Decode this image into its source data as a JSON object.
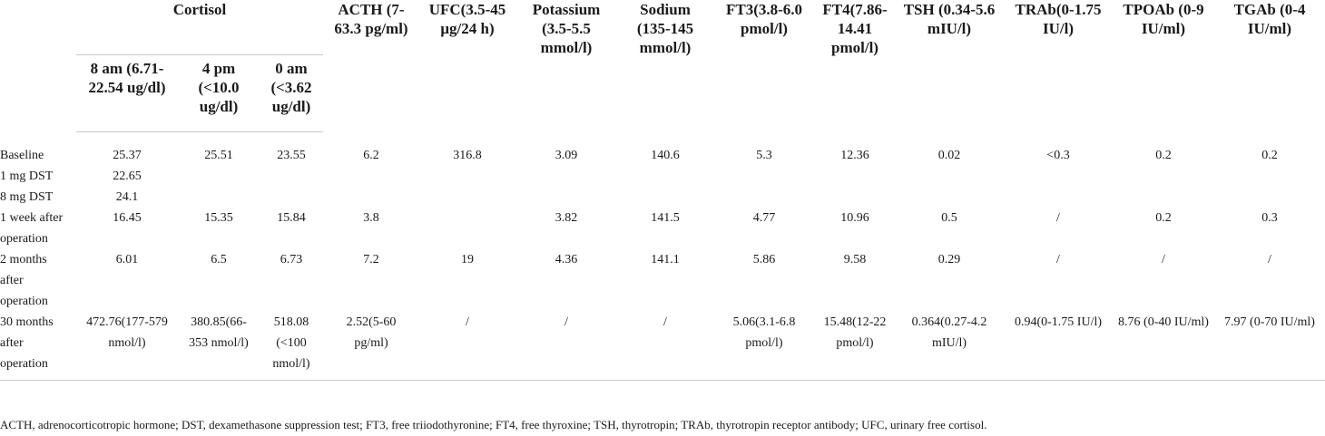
{
  "header": {
    "cortisol": "Cortisol",
    "cortisol_sub": [
      "8 am (6.71-22.54 ug/dl)",
      "4 pm (<10.0 ug/dl)",
      "0 am (<3.62 ug/dl)"
    ],
    "cols": [
      "ACTH (7-63.3 pg/ml)",
      "UFC(3.5-45 μg/24 h)",
      "Potassium (3.5-5.5 mmol/l)",
      "Sodium (135-145 mmol/l)",
      "FT3(3.8-6.0 pmol/l)",
      "FT4(7.86-14.41 pmol/l)",
      "TSH (0.34-5.6 mIU/l)",
      "TRAb(0-1.75 IU/l)",
      "TPOAb (0-9 IU/ml)",
      "TGAb (0-4 IU/ml)"
    ]
  },
  "rows": [
    {
      "label": "Baseline",
      "cells": [
        "25.37",
        "25.51",
        "23.55",
        "6.2",
        "316.8",
        "3.09",
        "140.6",
        "5.3",
        "12.36",
        "0.02",
        "<0.3",
        "0.2",
        "0.2"
      ]
    },
    {
      "label": "1 mg DST",
      "cells": [
        "22.65",
        "",
        "",
        "",
        "",
        "",
        "",
        "",
        "",
        "",
        "",
        "",
        ""
      ]
    },
    {
      "label": "8 mg DST",
      "cells": [
        "24.1",
        "",
        "",
        "",
        "",
        "",
        "",
        "",
        "",
        "",
        "",
        "",
        ""
      ]
    },
    {
      "label": "1 week after operation",
      "cells": [
        "16.45",
        "15.35",
        "15.84",
        "3.8",
        "",
        "3.82",
        "141.5",
        "4.77",
        "10.96",
        "0.5",
        "/",
        "0.2",
        "0.3"
      ]
    },
    {
      "label": "2 months after operation",
      "cells": [
        "6.01",
        "6.5",
        "6.73",
        "7.2",
        "19",
        "4.36",
        "141.1",
        "5.86",
        "9.58",
        "0.29",
        "/",
        "/",
        "/"
      ]
    },
    {
      "label": "30 months after operation",
      "cells": [
        "472.76(177-579 nmol/l)",
        "380.85(66-353 nmol/l)",
        "518.08 (<100 nmol/l)",
        "2.52(5-60 pg/ml)",
        "/",
        "/",
        "/",
        "5.06(3.1-6.8 pmol/l)",
        "15.48(12-22 pmol/l)",
        "0.364(0.27-4.2 mIU/l)",
        "0.94(0-1.75 IU/l)",
        "8.76 (0-40 IU/ml)",
        "7.97 (0-70 IU/ml)"
      ]
    }
  ],
  "footnote": "ACTH, adrenocorticotropic hormone; DST, dexamethasone suppression test; FT3, free triiodothyronine; FT4, free thyroxine; TSH, thyrotropin; TRAb, thyrotropin receptor antibody; UFC, urinary free cortisol."
}
